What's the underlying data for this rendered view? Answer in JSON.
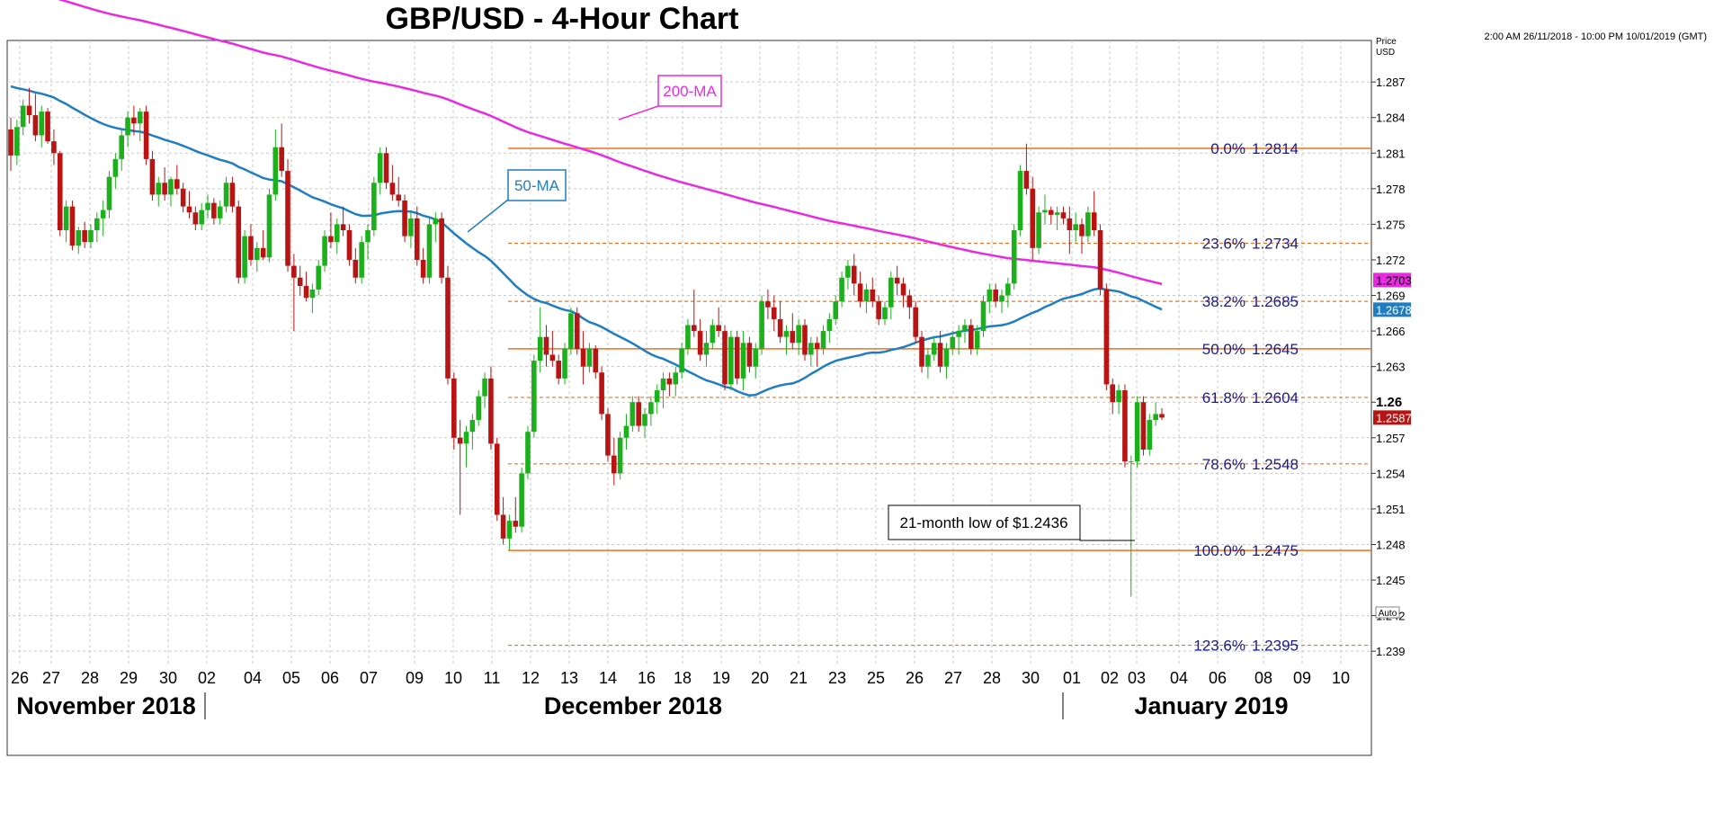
{
  "title": "GBP/USD - 4-Hour Chart",
  "range_text": "2:00 AM 26/11/2018 - 10:00 PM 10/01/2019 (GMT)",
  "axis": {
    "price_label": "Price",
    "currency_label": "USD",
    "auto_label": "Auto"
  },
  "months": [
    "November 2018",
    "December 2018",
    "January 2019"
  ],
  "annotations": {
    "ma200": "200-MA",
    "ma50": "50-MA",
    "low_note": "21-month low of $1.2436"
  },
  "colors": {
    "up": "#1db01d",
    "down": "#b81414",
    "ma200": "#e82be0",
    "ma50": "#1f7ec2",
    "fib": "#f07020",
    "fib_text": "#1a1a8c"
  },
  "chart_data": {
    "type": "candlestick",
    "title": "GBP/USD - 4-Hour Chart",
    "x_ticks": [
      "26",
      "27",
      "28",
      "29",
      "30",
      "02",
      "04",
      "05",
      "06",
      "07",
      "09",
      "10",
      "11",
      "12",
      "13",
      "14",
      "16",
      "18",
      "19",
      "20",
      "21",
      "23",
      "25",
      "26",
      "27",
      "28",
      "30",
      "01",
      "02",
      "03",
      "04",
      "06",
      "08",
      "09",
      "10"
    ],
    "y_ticks": [
      "1.287",
      "1.284",
      "1.281",
      "1.278",
      "1.275",
      "1.272",
      "1.269",
      "1.266",
      "1.263",
      "1.26",
      "1.257",
      "1.254",
      "1.251",
      "1.248",
      "1.245",
      "1.242",
      "1.239"
    ],
    "ylim": [
      1.2378,
      1.2905
    ],
    "fibonacci": [
      {
        "pct": "0.0%",
        "value": "1.2814"
      },
      {
        "pct": "23.6%",
        "value": "1.2734"
      },
      {
        "pct": "38.2%",
        "value": "1.2685"
      },
      {
        "pct": "50.0%",
        "value": "1.2645"
      },
      {
        "pct": "61.8%",
        "value": "1.2604"
      },
      {
        "pct": "78.6%",
        "value": "1.2548"
      },
      {
        "pct": "100.0%",
        "value": "1.2475"
      },
      {
        "pct": "123.6%",
        "value": "1.2395"
      }
    ],
    "last_price": "1.2587",
    "ma200_last": "1.2703",
    "ma50_last": "1.2678",
    "candles": [
      [
        1.283,
        1.284,
        1.2795,
        1.2808
      ],
      [
        1.2808,
        1.2838,
        1.28,
        1.2832
      ],
      [
        1.2832,
        1.2855,
        1.2825,
        1.285
      ],
      [
        1.285,
        1.2865,
        1.2835,
        1.2842
      ],
      [
        1.2842,
        1.286,
        1.282,
        1.2825
      ],
      [
        1.2825,
        1.285,
        1.2815,
        1.2845
      ],
      [
        1.2845,
        1.2848,
        1.2818,
        1.282
      ],
      [
        1.282,
        1.283,
        1.28,
        1.281
      ],
      [
        1.281,
        1.2812,
        1.274,
        1.2745
      ],
      [
        1.2745,
        1.277,
        1.2735,
        1.2765
      ],
      [
        1.2765,
        1.277,
        1.2728,
        1.2732
      ],
      [
        1.2732,
        1.2748,
        1.2725,
        1.2745
      ],
      [
        1.2745,
        1.2752,
        1.273,
        1.2735
      ],
      [
        1.2735,
        1.275,
        1.273,
        1.2745
      ],
      [
        1.2745,
        1.276,
        1.2735,
        1.2755
      ],
      [
        1.2755,
        1.277,
        1.274,
        1.2762
      ],
      [
        1.2762,
        1.2795,
        1.2755,
        1.279
      ],
      [
        1.279,
        1.281,
        1.278,
        1.2805
      ],
      [
        1.2805,
        1.283,
        1.2795,
        1.2825
      ],
      [
        1.2825,
        1.2845,
        1.2815,
        1.284
      ],
      [
        1.284,
        1.285,
        1.2825,
        1.2835
      ],
      [
        1.2835,
        1.2848,
        1.282,
        1.2845
      ],
      [
        1.2845,
        1.285,
        1.28,
        1.2805
      ],
      [
        1.2805,
        1.2812,
        1.277,
        1.2775
      ],
      [
        1.2775,
        1.279,
        1.2765,
        1.2785
      ],
      [
        1.2785,
        1.2798,
        1.277,
        1.2775
      ],
      [
        1.2775,
        1.279,
        1.2765,
        1.2788
      ],
      [
        1.2788,
        1.28,
        1.2775,
        1.278
      ],
      [
        1.278,
        1.2785,
        1.276,
        1.2765
      ],
      [
        1.2765,
        1.2778,
        1.2755,
        1.276
      ],
      [
        1.276,
        1.2765,
        1.2745,
        1.275
      ],
      [
        1.275,
        1.2768,
        1.2745,
        1.2762
      ],
      [
        1.2762,
        1.2775,
        1.2755,
        1.2768
      ],
      [
        1.2768,
        1.2772,
        1.275,
        1.2755
      ],
      [
        1.2755,
        1.277,
        1.275,
        1.2765
      ],
      [
        1.2765,
        1.279,
        1.276,
        1.2785
      ],
      [
        1.2785,
        1.279,
        1.276,
        1.2765
      ],
      [
        1.2765,
        1.277,
        1.27,
        1.2705
      ],
      [
        1.2705,
        1.2745,
        1.27,
        1.274
      ],
      [
        1.274,
        1.275,
        1.2715,
        1.272
      ],
      [
        1.272,
        1.2735,
        1.271,
        1.273
      ],
      [
        1.273,
        1.2745,
        1.272,
        1.2722
      ],
      [
        1.2722,
        1.278,
        1.2718,
        1.2775
      ],
      [
        1.2775,
        1.283,
        1.277,
        1.2815
      ],
      [
        1.2815,
        1.2835,
        1.279,
        1.2795
      ],
      [
        1.2795,
        1.2805,
        1.271,
        1.2715
      ],
      [
        1.2715,
        1.2725,
        1.266,
        1.2705
      ],
      [
        1.2705,
        1.2715,
        1.269,
        1.2698
      ],
      [
        1.2698,
        1.271,
        1.2685,
        1.2688
      ],
      [
        1.2688,
        1.27,
        1.2675,
        1.2695
      ],
      [
        1.2695,
        1.272,
        1.269,
        1.2715
      ],
      [
        1.2715,
        1.2745,
        1.271,
        1.274
      ],
      [
        1.274,
        1.276,
        1.273,
        1.2735
      ],
      [
        1.2735,
        1.2755,
        1.2725,
        1.275
      ],
      [
        1.275,
        1.2765,
        1.274,
        1.2745
      ],
      [
        1.2745,
        1.275,
        1.2715,
        1.272
      ],
      [
        1.272,
        1.273,
        1.27,
        1.2705
      ],
      [
        1.2705,
        1.274,
        1.27,
        1.2735
      ],
      [
        1.2735,
        1.275,
        1.272,
        1.2745
      ],
      [
        1.2745,
        1.279,
        1.274,
        1.2785
      ],
      [
        1.2785,
        1.2815,
        1.2775,
        1.281
      ],
      [
        1.281,
        1.2815,
        1.278,
        1.2785
      ],
      [
        1.2785,
        1.28,
        1.277,
        1.2775
      ],
      [
        1.2775,
        1.279,
        1.2765,
        1.277
      ],
      [
        1.277,
        1.2775,
        1.2735,
        1.274
      ],
      [
        1.274,
        1.276,
        1.273,
        1.2755
      ],
      [
        1.2755,
        1.2765,
        1.2715,
        1.272
      ],
      [
        1.272,
        1.273,
        1.27,
        1.2705
      ],
      [
        1.2705,
        1.2755,
        1.27,
        1.275
      ],
      [
        1.275,
        1.276,
        1.2735,
        1.2755
      ],
      [
        1.2755,
        1.276,
        1.27,
        1.2705
      ],
      [
        1.2705,
        1.2715,
        1.2615,
        1.262
      ],
      [
        1.262,
        1.2625,
        1.256,
        1.257
      ],
      [
        1.257,
        1.2585,
        1.2505,
        1.2565
      ],
      [
        1.2565,
        1.258,
        1.2545,
        1.2575
      ],
      [
        1.2575,
        1.259,
        1.256,
        1.2585
      ],
      [
        1.2585,
        1.261,
        1.258,
        1.2605
      ],
      [
        1.2605,
        1.2625,
        1.2595,
        1.262
      ],
      [
        1.262,
        1.263,
        1.256,
        1.2565
      ],
      [
        1.2565,
        1.257,
        1.25,
        1.2505
      ],
      [
        1.2505,
        1.252,
        1.248,
        1.2485
      ],
      [
        1.2485,
        1.2505,
        1.2475,
        1.25
      ],
      [
        1.25,
        1.252,
        1.249,
        1.2495
      ],
      [
        1.2495,
        1.2545,
        1.249,
        1.254
      ],
      [
        1.254,
        1.258,
        1.2535,
        1.2575
      ],
      [
        1.2575,
        1.264,
        1.257,
        1.2635
      ],
      [
        1.2635,
        1.268,
        1.2625,
        1.2655
      ],
      [
        1.2655,
        1.2665,
        1.263,
        1.264
      ],
      [
        1.264,
        1.266,
        1.263,
        1.2635
      ],
      [
        1.2635,
        1.264,
        1.2615,
        1.262
      ],
      [
        1.262,
        1.265,
        1.2615,
        1.2645
      ],
      [
        1.2645,
        1.268,
        1.264,
        1.2675
      ],
      [
        1.2675,
        1.268,
        1.264,
        1.2645
      ],
      [
        1.2645,
        1.266,
        1.2615,
        1.263
      ],
      [
        1.263,
        1.265,
        1.2625,
        1.2645
      ],
      [
        1.2645,
        1.2648,
        1.262,
        1.2625
      ],
      [
        1.2625,
        1.263,
        1.2585,
        1.259
      ],
      [
        1.259,
        1.2595,
        1.255,
        1.2555
      ],
      [
        1.2555,
        1.257,
        1.253,
        1.254
      ],
      [
        1.254,
        1.2575,
        1.2535,
        1.257
      ],
      [
        1.257,
        1.259,
        1.256,
        1.258
      ],
      [
        1.258,
        1.2605,
        1.2575,
        1.26
      ],
      [
        1.26,
        1.2605,
        1.2575,
        1.258
      ],
      [
        1.258,
        1.2595,
        1.257,
        1.259
      ],
      [
        1.259,
        1.2605,
        1.258,
        1.26
      ],
      [
        1.26,
        1.2615,
        1.259,
        1.261
      ],
      [
        1.261,
        1.2625,
        1.2595,
        1.262
      ],
      [
        1.262,
        1.2625,
        1.2605,
        1.2615
      ],
      [
        1.2615,
        1.263,
        1.2605,
        1.2625
      ],
      [
        1.2625,
        1.265,
        1.262,
        1.2645
      ],
      [
        1.2645,
        1.267,
        1.264,
        1.2665
      ],
      [
        1.2665,
        1.2695,
        1.2655,
        1.266
      ],
      [
        1.266,
        1.267,
        1.2635,
        1.264
      ],
      [
        1.264,
        1.266,
        1.263,
        1.265
      ],
      [
        1.265,
        1.267,
        1.2645,
        1.2665
      ],
      [
        1.2665,
        1.268,
        1.2655,
        1.266
      ],
      [
        1.266,
        1.2665,
        1.261,
        1.2615
      ],
      [
        1.2615,
        1.266,
        1.261,
        1.2655
      ],
      [
        1.2655,
        1.266,
        1.2615,
        1.262
      ],
      [
        1.262,
        1.266,
        1.261,
        1.265
      ],
      [
        1.265,
        1.2655,
        1.2625,
        1.263
      ],
      [
        1.263,
        1.265,
        1.262,
        1.2645
      ],
      [
        1.2645,
        1.269,
        1.264,
        1.2685
      ],
      [
        1.2685,
        1.2695,
        1.267,
        1.268
      ],
      [
        1.268,
        1.269,
        1.266,
        1.267
      ],
      [
        1.267,
        1.2685,
        1.265,
        1.2655
      ],
      [
        1.2655,
        1.2665,
        1.264,
        1.266
      ],
      [
        1.266,
        1.2675,
        1.2645,
        1.265
      ],
      [
        1.265,
        1.267,
        1.264,
        1.2665
      ],
      [
        1.2665,
        1.267,
        1.2635,
        1.264
      ],
      [
        1.264,
        1.2655,
        1.263,
        1.265
      ],
      [
        1.265,
        1.2655,
        1.263,
        1.2645
      ],
      [
        1.2645,
        1.2665,
        1.264,
        1.266
      ],
      [
        1.266,
        1.2675,
        1.265,
        1.267
      ],
      [
        1.267,
        1.269,
        1.2665,
        1.2685
      ],
      [
        1.2685,
        1.271,
        1.268,
        1.2705
      ],
      [
        1.2705,
        1.272,
        1.2695,
        1.2715
      ],
      [
        1.2715,
        1.2725,
        1.269,
        1.27
      ],
      [
        1.27,
        1.271,
        1.268,
        1.2685
      ],
      [
        1.2685,
        1.27,
        1.2675,
        1.2695
      ],
      [
        1.2695,
        1.2705,
        1.268,
        1.2685
      ],
      [
        1.2685,
        1.269,
        1.2665,
        1.267
      ],
      [
        1.267,
        1.2685,
        1.2665,
        1.268
      ],
      [
        1.268,
        1.271,
        1.267,
        1.2705
      ],
      [
        1.2705,
        1.2715,
        1.269,
        1.27
      ],
      [
        1.27,
        1.2705,
        1.268,
        1.269
      ],
      [
        1.269,
        1.2695,
        1.267,
        1.268
      ],
      [
        1.268,
        1.2685,
        1.265,
        1.2655
      ],
      [
        1.2655,
        1.266,
        1.2625,
        1.263
      ],
      [
        1.263,
        1.2645,
        1.262,
        1.264
      ],
      [
        1.264,
        1.2655,
        1.2635,
        1.265
      ],
      [
        1.265,
        1.266,
        1.2625,
        1.263
      ],
      [
        1.263,
        1.265,
        1.262,
        1.2645
      ],
      [
        1.2645,
        1.266,
        1.264,
        1.2655
      ],
      [
        1.2655,
        1.2665,
        1.264,
        1.266
      ],
      [
        1.266,
        1.267,
        1.265,
        1.2665
      ],
      [
        1.2665,
        1.267,
        1.264,
        1.2645
      ],
      [
        1.2645,
        1.2665,
        1.264,
        1.266
      ],
      [
        1.266,
        1.269,
        1.2655,
        1.2685
      ],
      [
        1.2685,
        1.27,
        1.2675,
        1.2695
      ],
      [
        1.2695,
        1.27,
        1.268,
        1.2685
      ],
      [
        1.2685,
        1.2695,
        1.2675,
        1.269
      ],
      [
        1.269,
        1.2705,
        1.268,
        1.27
      ],
      [
        1.27,
        1.275,
        1.2695,
        1.2745
      ],
      [
        1.2745,
        1.28,
        1.274,
        1.2795
      ],
      [
        1.2795,
        1.2818,
        1.2775,
        1.278
      ],
      [
        1.278,
        1.279,
        1.272,
        1.273
      ],
      [
        1.273,
        1.2765,
        1.2725,
        1.276
      ],
      [
        1.276,
        1.2775,
        1.275,
        1.2762
      ],
      [
        1.2762,
        1.2765,
        1.275,
        1.2758
      ],
      [
        1.2758,
        1.2765,
        1.2745,
        1.276
      ],
      [
        1.276,
        1.2765,
        1.275,
        1.2755
      ],
      [
        1.2755,
        1.2765,
        1.2725,
        1.2745
      ],
      [
        1.2745,
        1.276,
        1.2735,
        1.275
      ],
      [
        1.275,
        1.2755,
        1.2725,
        1.274
      ],
      [
        1.274,
        1.2765,
        1.2735,
        1.276
      ],
      [
        1.276,
        1.2778,
        1.274,
        1.2745
      ],
      [
        1.2745,
        1.275,
        1.269,
        1.2695
      ],
      [
        1.2695,
        1.27,
        1.261,
        1.2615
      ],
      [
        1.2615,
        1.262,
        1.259,
        1.26
      ],
      [
        1.26,
        1.2615,
        1.259,
        1.261
      ],
      [
        1.261,
        1.2615,
        1.2545,
        1.255
      ],
      [
        1.255,
        1.2555,
        1.2436,
        1.255
      ],
      [
        1.255,
        1.2605,
        1.2545,
        1.26
      ],
      [
        1.26,
        1.2605,
        1.2555,
        1.256
      ],
      [
        1.256,
        1.259,
        1.2555,
        1.2585
      ],
      [
        1.2585,
        1.26,
        1.258,
        1.259
      ],
      [
        1.259,
        1.2595,
        1.2585,
        1.2587
      ]
    ]
  }
}
